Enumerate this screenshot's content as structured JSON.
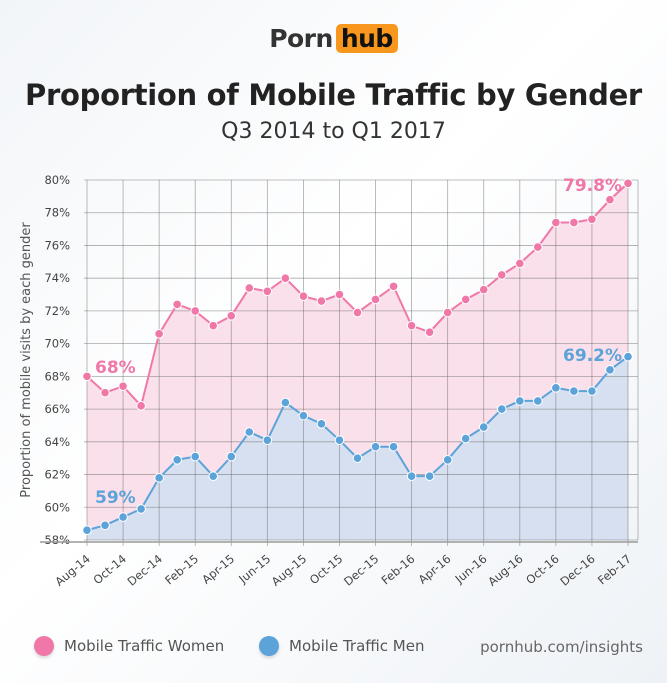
{
  "logo": {
    "part1": "Porn",
    "part2": "hub",
    "accent": "#f7971d"
  },
  "source": "pornhub.com/insights",
  "chart_data": {
    "type": "area",
    "title": "Proportion of Mobile Traffic by Gender",
    "subtitle": "Q3 2014 to Q1 2017",
    "ylabel": "Proportion of mobile visits by each gender",
    "xlabel": "",
    "ylim": [
      58,
      80
    ],
    "yticks": [
      "58%",
      "60%",
      "62%",
      "64%",
      "66%",
      "68%",
      "70%",
      "72%",
      "74%",
      "76%",
      "78%",
      "80%"
    ],
    "x": [
      "Aug-14",
      "Sep-14",
      "Oct-14",
      "Nov-14",
      "Dec-14",
      "Jan-15",
      "Feb-15",
      "Mar-15",
      "Apr-15",
      "May-15",
      "Jun-15",
      "Jul-15",
      "Aug-15",
      "Sep-15",
      "Oct-15",
      "Nov-15",
      "Dec-15",
      "Jan-16",
      "Feb-16",
      "Mar-16",
      "Apr-16",
      "May-16",
      "Jun-16",
      "Jul-16",
      "Aug-16",
      "Sep-16",
      "Oct-16",
      "Nov-16",
      "Dec-16",
      "Jan-17",
      "Feb-17"
    ],
    "xticks": [
      "Aug-14",
      "Oct-14",
      "Dec-14",
      "Feb-15",
      "Apr-15",
      "Jun-15",
      "Aug-15",
      "Oct-15",
      "Dec-15",
      "Feb-16",
      "Apr-16",
      "Jun-16",
      "Aug-16",
      "Oct-16",
      "Dec-16",
      "Feb-17"
    ],
    "grid": true,
    "legend": "bottom",
    "series": [
      {
        "name": "Mobile Traffic Women",
        "color": "#ef78a8",
        "values": [
          68.0,
          67.0,
          67.4,
          66.2,
          70.6,
          72.4,
          72.0,
          71.1,
          71.7,
          73.4,
          73.2,
          74.0,
          72.9,
          72.6,
          73.0,
          71.9,
          72.7,
          73.5,
          71.1,
          70.7,
          71.9,
          72.7,
          73.3,
          74.2,
          74.9,
          75.9,
          77.4,
          77.4,
          77.6,
          78.8,
          79.8
        ],
        "annotations": [
          {
            "x": "Aug-14",
            "label": "68%"
          },
          {
            "x": "Feb-17",
            "label": "79.8%"
          }
        ]
      },
      {
        "name": "Mobile Traffic Men",
        "color": "#5ba3d9",
        "values": [
          58.6,
          58.9,
          59.4,
          59.9,
          61.8,
          62.9,
          63.1,
          61.9,
          63.1,
          64.6,
          64.1,
          66.4,
          65.6,
          65.1,
          64.1,
          63.0,
          63.7,
          63.7,
          61.9,
          61.9,
          62.9,
          64.2,
          64.9,
          66.0,
          66.5,
          66.5,
          67.3,
          67.1,
          67.1,
          68.4,
          69.2
        ],
        "annotations": [
          {
            "x": "Aug-14",
            "label": "59%"
          },
          {
            "x": "Feb-17",
            "label": "69.2%"
          }
        ]
      }
    ]
  }
}
